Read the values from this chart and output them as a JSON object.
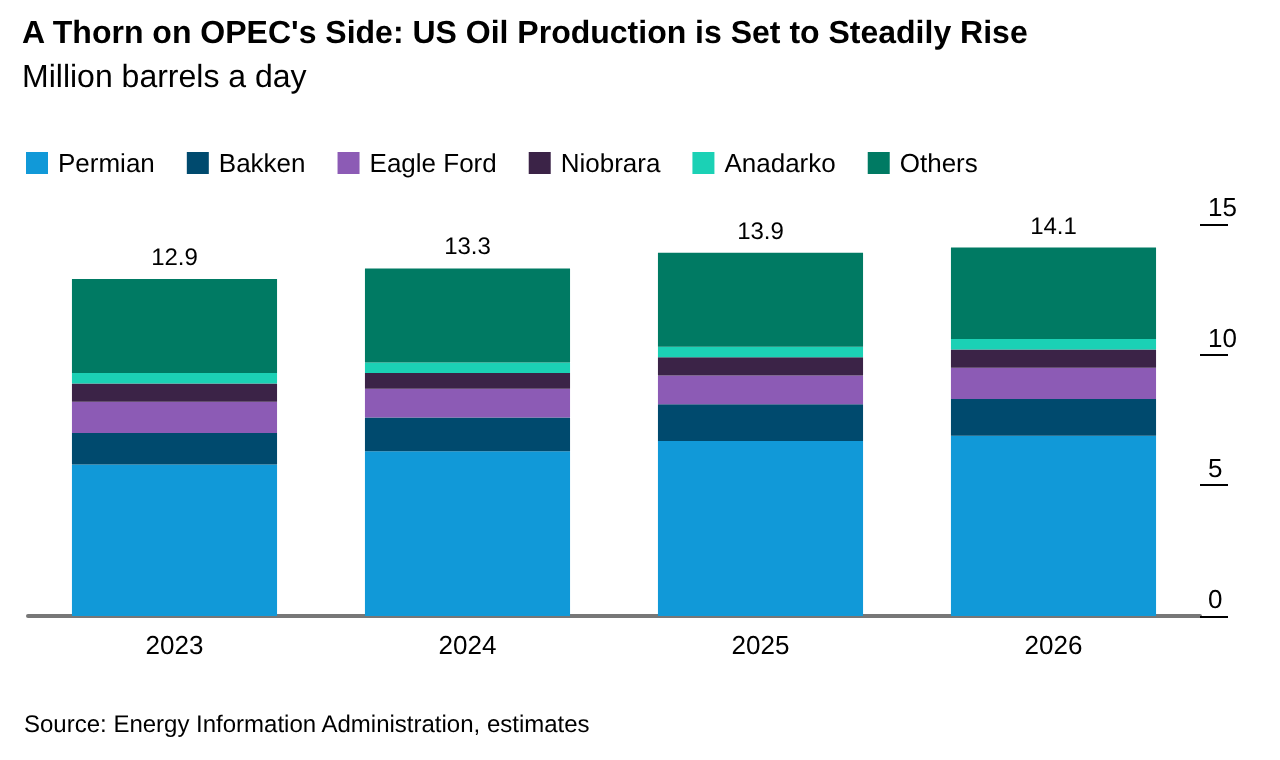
{
  "chart_data": {
    "type": "bar",
    "title": "A Thorn on OPEC's Side: US Oil Production is Set to Steadily Rise",
    "subtitle": "Million barrels a day",
    "categories": [
      "2023",
      "2024",
      "2025",
      "2026"
    ],
    "stacked": true,
    "series": [
      {
        "name": "Permian",
        "color": "#1199d8",
        "values": [
          5.8,
          6.3,
          6.7,
          6.9
        ]
      },
      {
        "name": "Bakken",
        "color": "#004a6e",
        "values": [
          1.2,
          1.3,
          1.4,
          1.4
        ]
      },
      {
        "name": "Eagle Ford",
        "color": "#8c5bb5",
        "values": [
          1.2,
          1.1,
          1.1,
          1.2
        ]
      },
      {
        "name": "Niobrara",
        "color": "#3b2347",
        "values": [
          0.7,
          0.6,
          0.7,
          0.7
        ]
      },
      {
        "name": "Anadarko",
        "color": "#1bd1b5",
        "values": [
          0.4,
          0.4,
          0.4,
          0.4
        ]
      },
      {
        "name": "Others",
        "color": "#007a63",
        "values": [
          3.6,
          3.6,
          3.6,
          3.5
        ]
      }
    ],
    "totals": [
      "12.9",
      "13.3",
      "13.9",
      "14.1"
    ],
    "ylim": [
      0,
      15
    ],
    "yticks": [
      0,
      5,
      10,
      15
    ],
    "grid": false,
    "legend": "top left",
    "annotations": [
      "Source: Energy Information Administration, estimates"
    ]
  }
}
